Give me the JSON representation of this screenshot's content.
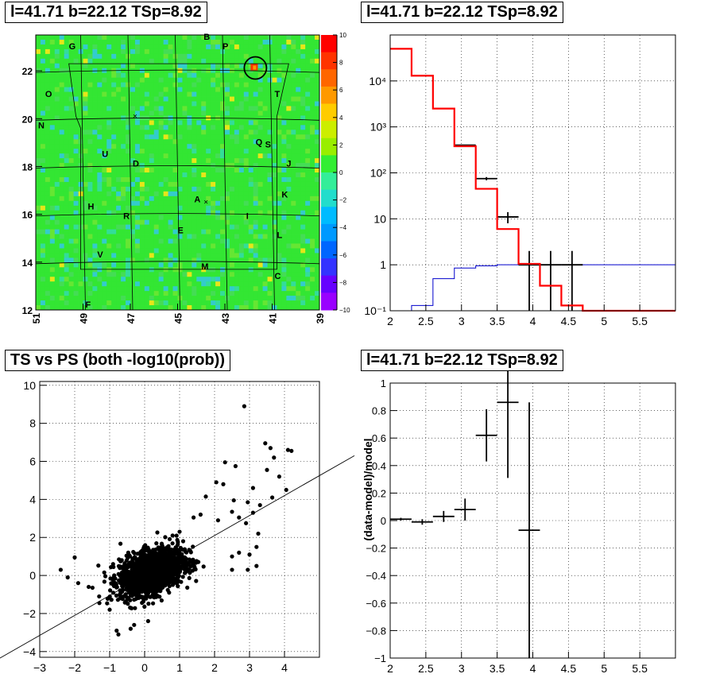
{
  "panels": {
    "skymap": {
      "title": "l=41.71 b=22.12 TSp=8.92"
    },
    "spectrum": {
      "title": "l=41.71 b=22.12 TSp=8.92"
    },
    "scatter": {
      "title": "TS vs PS (both -log10(prob))"
    },
    "residual": {
      "title": "l=41.71 b=22.12 TSp=8.92"
    }
  },
  "chart_data": [
    {
      "type": "heatmap",
      "title": "l=41.71 b=22.12 TSp=8.92",
      "xlim": [
        51,
        39
      ],
      "ylim": [
        12,
        23.5
      ],
      "x_ticks": [
        "51",
        "49",
        "47",
        "45",
        "43",
        "41",
        "39"
      ],
      "y_ticks": [
        "12",
        "14",
        "16",
        "18",
        "20",
        "22"
      ],
      "colorbar": {
        "range": [
          -10,
          10
        ],
        "ticks": [
          "10",
          "8",
          "6",
          "4",
          "2",
          "0",
          "−2",
          "−4",
          "−6",
          "−8",
          "−10"
        ]
      },
      "colors": {
        "base": "#33e633",
        "warm": "#e6e619",
        "hot": "#ff3300",
        "cool": "#33cccc"
      },
      "labels": [
        {
          "text": "G",
          "x": 49.6,
          "y": 22.9
        },
        {
          "text": "B",
          "x": 43.9,
          "y": 23.3
        },
        {
          "text": "P",
          "x": 43.1,
          "y": 22.9
        },
        {
          "text": "O",
          "x": 50.6,
          "y": 20.9
        },
        {
          "text": "T",
          "x": 40.9,
          "y": 20.9
        },
        {
          "text": "N",
          "x": 50.9,
          "y": 19.6
        },
        {
          "text": "Q",
          "x": 41.7,
          "y": 18.9
        },
        {
          "text": "S",
          "x": 41.3,
          "y": 18.8
        },
        {
          "text": "U",
          "x": 48.2,
          "y": 18.4
        },
        {
          "text": "D",
          "x": 46.9,
          "y": 18.0
        },
        {
          "text": "J",
          "x": 40.4,
          "y": 18.0
        },
        {
          "text": "K",
          "x": 40.6,
          "y": 16.7
        },
        {
          "text": "A",
          "x": 44.3,
          "y": 16.5
        },
        {
          "text": "H",
          "x": 48.8,
          "y": 16.2
        },
        {
          "text": "I",
          "x": 42.1,
          "y": 15.8
        },
        {
          "text": "R",
          "x": 47.3,
          "y": 15.8
        },
        {
          "text": "E",
          "x": 45.0,
          "y": 15.2
        },
        {
          "text": "L",
          "x": 40.8,
          "y": 15.0
        },
        {
          "text": "V",
          "x": 48.4,
          "y": 14.2
        },
        {
          "text": "M",
          "x": 44.0,
          "y": 13.7
        },
        {
          "text": "C",
          "x": 40.9,
          "y": 13.3
        },
        {
          "text": "F",
          "x": 48.9,
          "y": 12.1
        }
      ],
      "source_circle": {
        "l": 41.71,
        "b": 22.12
      }
    },
    {
      "type": "line",
      "title": "l=41.71 b=22.12 TSp=8.92",
      "xlim": [
        2,
        6
      ],
      "ylim": [
        0.1,
        100000
      ],
      "yscale": "log",
      "x_ticks": [
        "2",
        "2.5",
        "3",
        "3.5",
        "4",
        "4.5",
        "5",
        "5.5"
      ],
      "y_ticks": [
        "10⁻¹",
        "1",
        "10",
        "10²",
        "10³",
        "10⁴"
      ],
      "grid": true,
      "bin_edges": [
        2.0,
        2.3,
        2.6,
        2.9,
        3.2,
        3.5,
        3.8,
        4.1,
        4.4,
        4.7,
        5.0,
        5.3,
        5.6,
        5.9,
        6.0
      ],
      "model": [
        50000,
        13000,
        2500,
        380,
        45,
        6,
        1.05,
        0.35,
        0.13,
        0.1,
        0.1,
        0.1,
        0.1,
        0.1
      ],
      "background": [
        0.09,
        0.13,
        0.5,
        0.85,
        0.95,
        1.0,
        1.0,
        1.0,
        1.0,
        1.0,
        1.0,
        1.0,
        1.0,
        1.0
      ],
      "data": [
        {
          "x": 2.15,
          "y": 50000,
          "lo": 50000,
          "hi": 50000
        },
        {
          "x": 2.45,
          "y": 13000,
          "lo": 13000,
          "hi": 13000
        },
        {
          "x": 2.75,
          "y": 2500,
          "lo": 2500,
          "hi": 2500
        },
        {
          "x": 3.05,
          "y": 400,
          "lo": 390,
          "hi": 410
        },
        {
          "x": 3.35,
          "y": 75,
          "lo": 69,
          "hi": 81
        },
        {
          "x": 3.65,
          "y": 11,
          "lo": 8,
          "hi": 14
        },
        {
          "x": 3.95,
          "y": 1,
          "lo": 0.1,
          "hi": 2
        },
        {
          "x": 4.25,
          "y": 1,
          "lo": 0.1,
          "hi": 2
        },
        {
          "x": 4.55,
          "y": 1,
          "lo": 0.1,
          "hi": 2
        }
      ],
      "colors": {
        "model": "#ff0000",
        "background": "#0000cc",
        "data": "#000000"
      }
    },
    {
      "type": "scatter",
      "title": "TS vs PS (both -log10(prob))",
      "xlim": [
        -3,
        5
      ],
      "ylim": [
        -4.3,
        10.2
      ],
      "x_ticks": [
        "−3",
        "−2",
        "−1",
        "0",
        "1",
        "2",
        "3",
        "4"
      ],
      "y_ticks": [
        "−4",
        "−2",
        "0",
        "2",
        "4",
        "6",
        "8",
        "10"
      ],
      "grid": true,
      "fit_line": {
        "slope": 1.05,
        "intercept": 0.0
      },
      "outliers": [
        [
          2.85,
          8.9
        ],
        [
          3.45,
          6.95
        ],
        [
          3.6,
          6.7
        ],
        [
          3.7,
          6.2
        ],
        [
          4.1,
          6.6
        ],
        [
          4.2,
          6.55
        ],
        [
          2.3,
          5.95
        ],
        [
          2.6,
          5.75
        ],
        [
          3.5,
          5.55
        ],
        [
          3.85,
          5.2
        ],
        [
          2.05,
          4.9
        ],
        [
          2.25,
          4.8
        ],
        [
          4.05,
          4.5
        ],
        [
          3.1,
          4.6
        ],
        [
          3.65,
          4.1
        ],
        [
          2.95,
          3.85
        ],
        [
          3.3,
          3.7
        ],
        [
          2.55,
          3.95
        ],
        [
          1.75,
          4.15
        ],
        [
          2.5,
          3.35
        ],
        [
          3.1,
          3.3
        ],
        [
          2.7,
          3.05
        ],
        [
          2.9,
          2.75
        ],
        [
          3.25,
          2.2
        ],
        [
          2.1,
          2.9
        ],
        [
          1.6,
          3.2
        ],
        [
          1.4,
          3.05
        ],
        [
          3.2,
          1.5
        ],
        [
          3.0,
          1.1
        ],
        [
          2.7,
          1.2
        ],
        [
          2.5,
          1.0
        ],
        [
          3.2,
          0.5
        ],
        [
          2.95,
          0.3
        ],
        [
          2.5,
          0.3
        ],
        [
          -2.0,
          0.95
        ],
        [
          -2.4,
          0.3
        ],
        [
          -2.2,
          -0.1
        ],
        [
          -1.9,
          -0.4
        ],
        [
          -0.8,
          -2.9
        ],
        [
          -0.75,
          -3.1
        ],
        [
          -0.4,
          -2.8
        ],
        [
          -0.3,
          -2.6
        ],
        [
          -1.3,
          -1.1
        ],
        [
          -1.6,
          -0.6
        ],
        [
          -1.0,
          -1.8
        ],
        [
          0.1,
          -2.4
        ],
        [
          1.0,
          2.3
        ],
        [
          0.8,
          2.1
        ]
      ],
      "cloud": {
        "center": [
          0.2,
          0.2
        ],
        "spread": [
          0.45,
          0.55
        ],
        "count": 1800
      },
      "colors": {
        "points": "#000000",
        "line": "#000000"
      }
    },
    {
      "type": "scatter",
      "title": "l=41.71 b=22.12 TSp=8.92",
      "ylabel": "(data-model)/model",
      "xlim": [
        2,
        6
      ],
      "ylim": [
        -1,
        1
      ],
      "x_ticks": [
        "2",
        "2.5",
        "3",
        "3.5",
        "4",
        "4.5",
        "5",
        "5.5"
      ],
      "y_ticks": [
        "−1",
        "−0.8",
        "−0.6",
        "−0.4",
        "−0.2",
        "0",
        "0.2",
        "0.4",
        "0.6",
        "0.8",
        "1"
      ],
      "grid": true,
      "points": [
        {
          "x": 2.15,
          "y": 0.01,
          "err": 0.01
        },
        {
          "x": 2.45,
          "y": -0.01,
          "err": 0.02
        },
        {
          "x": 2.75,
          "y": 0.03,
          "err": 0.04
        },
        {
          "x": 3.05,
          "y": 0.08,
          "err": 0.08
        },
        {
          "x": 3.35,
          "y": 0.62,
          "err": 0.19
        },
        {
          "x": 3.65,
          "y": 0.86,
          "err": 0.55
        },
        {
          "x": 3.95,
          "y": -0.07,
          "err": 0.93
        }
      ]
    }
  ]
}
